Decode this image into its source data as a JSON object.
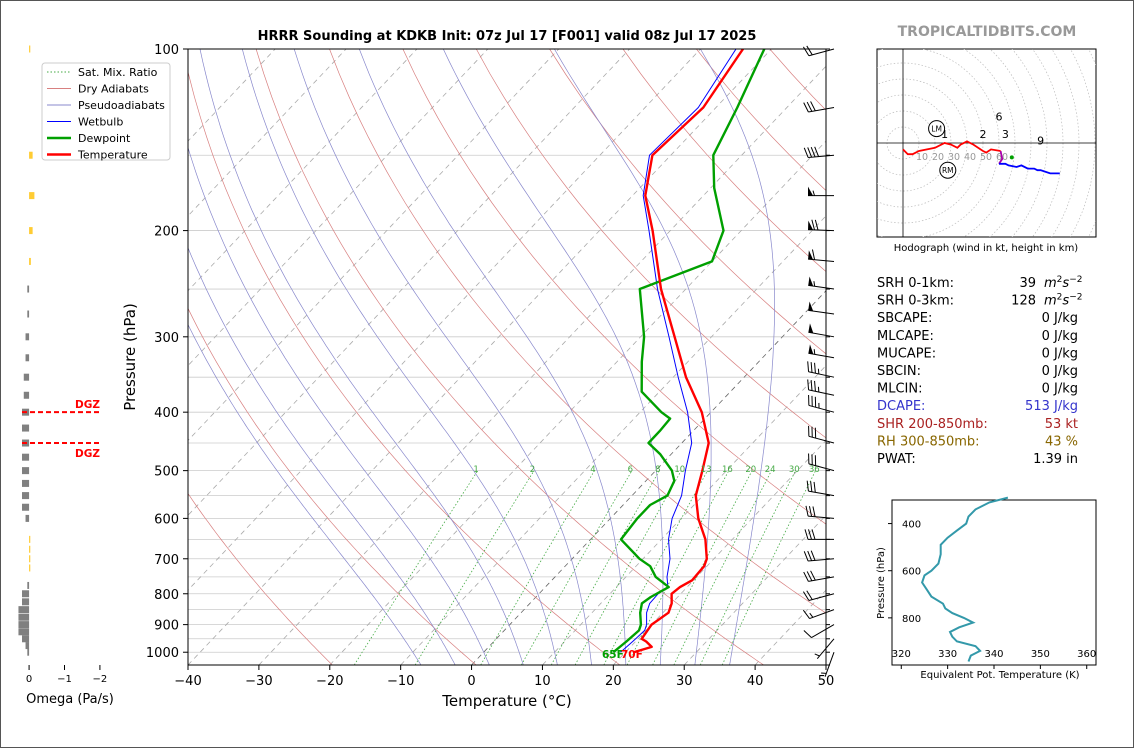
{
  "site_label": "TROPICALTIDBITS.COM",
  "colors": {
    "temperature": "#ff0000",
    "dewpoint": "#00a000",
    "wetbulb": "#0000ff",
    "dry_adiabat": "#d88080",
    "pseudoadiabat": "#8888cc",
    "mixing_ratio": "#44aa44",
    "hodograph_low": "#ff0000",
    "hodograph_mid": "#aa00aa",
    "hodograph_high": "#0000ff",
    "theta_e": "#3399aa",
    "dcape": "#3333cc",
    "shr": "#aa2222",
    "rh": "#886600",
    "dgz": "#ff0000",
    "omega_bar": "#808080",
    "omega_bar_positive": "#ffcc33"
  },
  "chart_data": [
    {
      "id": "skewt",
      "type": "line",
      "title": "HRRR Sounding at KDKB Init: 07z Jul 17 [F001] valid 08z Jul 17 2025",
      "xlabel": "Temperature (°C)",
      "ylabel": "Pressure (hPa)",
      "xlim": [
        -40,
        50
      ],
      "ylim": [
        1050,
        100
      ],
      "y_scale": "log",
      "x_ticks": [
        -40,
        -30,
        -20,
        -10,
        0,
        10,
        20,
        30,
        40,
        50
      ],
      "x_tick_labels": [
        "−40",
        "−30",
        "−20",
        "−10",
        "0",
        "10",
        "20",
        "30",
        "40",
        "50"
      ],
      "y_ticks": [
        100,
        200,
        300,
        400,
        500,
        600,
        700,
        800,
        900,
        1000
      ],
      "legend": {
        "position": "top-left",
        "entries": [
          "Sat. Mix. Ratio",
          "Dry Adiabats",
          "Pseudoadiabats",
          "Wetbulb",
          "Dewpoint",
          "Temperature"
        ]
      },
      "mixing_ratio_labels": [
        "1",
        "2",
        "4",
        "6",
        "8",
        "10",
        "13",
        "16",
        "20",
        "24",
        "30",
        "36"
      ],
      "surface_labels": {
        "dewpoint": "65F",
        "temperature": "70F"
      },
      "series": [
        {
          "name": "Temperature",
          "points": [
            [
              1000,
              21.2
            ],
            [
              980,
              23.0
            ],
            [
              960,
              21.5
            ],
            [
              950,
              20.5
            ],
            [
              920,
              20.2
            ],
            [
              900,
              20.0
            ],
            [
              860,
              20.8
            ],
            [
              830,
              20.0
            ],
            [
              800,
              18.7
            ],
            [
              780,
              19.0
            ],
            [
              760,
              19.8
            ],
            [
              720,
              19.6
            ],
            [
              700,
              19.0
            ],
            [
              650,
              16.2
            ],
            [
              600,
              12.4
            ],
            [
              550,
              9.0
            ],
            [
              500,
              6.6
            ],
            [
              450,
              3.8
            ],
            [
              400,
              -1.3
            ],
            [
              350,
              -8.2
            ],
            [
              300,
              -15.2
            ],
            [
              250,
              -23.5
            ],
            [
              200,
              -32.5
            ],
            [
              175,
              -38.2
            ],
            [
              150,
              -42.6
            ],
            [
              125,
              -41.8
            ],
            [
              100,
              -44.0
            ]
          ]
        },
        {
          "name": "Dewpoint",
          "points": [
            [
              1000,
              18.3
            ],
            [
              960,
              18.7
            ],
            [
              920,
              19.0
            ],
            [
              900,
              18.5
            ],
            [
              860,
              16.8
            ],
            [
              830,
              15.8
            ],
            [
              810,
              16.2
            ],
            [
              780,
              17.4
            ],
            [
              750,
              14.2
            ],
            [
              720,
              12.0
            ],
            [
              700,
              9.5
            ],
            [
              650,
              4.3
            ],
            [
              600,
              3.8
            ],
            [
              570,
              3.8
            ],
            [
              550,
              5.0
            ],
            [
              520,
              4.0
            ],
            [
              500,
              2.3
            ],
            [
              470,
              -1.5
            ],
            [
              450,
              -4.7
            ],
            [
              430,
              -4.7
            ],
            [
              410,
              -4.9
            ],
            [
              400,
              -7.0
            ],
            [
              370,
              -12.5
            ],
            [
              330,
              -16.5
            ],
            [
              300,
              -19.5
            ],
            [
              250,
              -26.5
            ],
            [
              225,
              -20.0
            ],
            [
              200,
              -22.5
            ],
            [
              170,
              -29.5
            ],
            [
              150,
              -34.0
            ],
            [
              125,
              -37.0
            ],
            [
              100,
              -41.0
            ]
          ]
        },
        {
          "name": "Wetbulb",
          "points": [
            [
              1000,
              19.3
            ],
            [
              960,
              19.6
            ],
            [
              920,
              19.8
            ],
            [
              900,
              19.3
            ],
            [
              860,
              17.7
            ],
            [
              830,
              16.9
            ],
            [
              800,
              16.8
            ],
            [
              780,
              17.3
            ],
            [
              750,
              15.8
            ],
            [
              700,
              13.8
            ],
            [
              650,
              11.0
            ],
            [
              600,
              8.7
            ],
            [
              550,
              7.0
            ],
            [
              500,
              4.2
            ],
            [
              450,
              1.4
            ],
            [
              400,
              -3.3
            ],
            [
              350,
              -9.3
            ],
            [
              300,
              -16.0
            ],
            [
              250,
              -24.0
            ],
            [
              200,
              -33.0
            ],
            [
              175,
              -38.5
            ],
            [
              150,
              -43.0
            ],
            [
              125,
              -42.5
            ],
            [
              100,
              -45.0
            ]
          ]
        }
      ],
      "dry_adiabats_thetas_K": [
        250,
        270,
        290,
        310,
        330,
        350,
        370,
        390,
        410,
        430,
        450,
        470,
        490,
        510,
        530
      ],
      "pseudoadiabats_thetaw_C": [
        -10,
        -5,
        0,
        5,
        10,
        15,
        20,
        25,
        30,
        35
      ],
      "mixing_ratios_gkg": [
        1,
        2,
        4,
        6,
        8,
        10,
        13,
        16,
        20,
        24,
        30,
        36
      ],
      "isotherms_C": [
        -110,
        -100,
        -90,
        -80,
        -70,
        -60,
        -50,
        -40,
        -30,
        -20,
        -10,
        0,
        10,
        20,
        30,
        40,
        50
      ]
    },
    {
      "id": "omega",
      "type": "bar",
      "xlabel": "Omega (Pa/s)",
      "x_ticks": [
        0,
        -1,
        -2
      ],
      "x_tick_labels": [
        "0",
        "−1",
        "−2"
      ],
      "xlim": [
        0.2,
        -2.2
      ],
      "dgz_label": "DGZ",
      "dgz_pressures": [
        400,
        450
      ],
      "bars": [
        [
          1000,
          0.05
        ],
        [
          975,
          0.1
        ],
        [
          950,
          0.2
        ],
        [
          925,
          0.3
        ],
        [
          900,
          0.3
        ],
        [
          875,
          0.3
        ],
        [
          850,
          0.3
        ],
        [
          825,
          0.2
        ],
        [
          800,
          0.2
        ],
        [
          775,
          0.05
        ],
        [
          725,
          -0.03
        ],
        [
          700,
          -0.03
        ],
        [
          675,
          -0.03
        ],
        [
          650,
          -0.02
        ],
        [
          600,
          0.1
        ],
        [
          575,
          0.2
        ],
        [
          550,
          0.2
        ],
        [
          525,
          0.2
        ],
        [
          500,
          0.2
        ],
        [
          475,
          0.2
        ],
        [
          450,
          0.2
        ],
        [
          425,
          0.2
        ],
        [
          400,
          0.2
        ],
        [
          375,
          0.15
        ],
        [
          350,
          0.15
        ],
        [
          325,
          0.1
        ],
        [
          300,
          0.1
        ],
        [
          275,
          0.05
        ],
        [
          250,
          0.05
        ],
        [
          225,
          -0.05
        ],
        [
          200,
          -0.1
        ],
        [
          175,
          -0.15
        ],
        [
          150,
          -0.1
        ],
        [
          100,
          -0.02
        ]
      ]
    },
    {
      "id": "hodograph",
      "type": "line",
      "caption": "Hodograph (wind in kt, height in km)",
      "ring_labels": [
        "10",
        "20",
        "30",
        "40",
        "50",
        "60"
      ],
      "height_labels": [
        "1",
        "2",
        "3",
        "6",
        "9"
      ],
      "storm_labels": [
        "LM",
        "RM"
      ],
      "storm_motion": {
        "LM": [
          21,
          9
        ],
        "RM": [
          28,
          -17
        ]
      },
      "points": [
        [
          0,
          -4
        ],
        [
          3,
          -7
        ],
        [
          6,
          -7
        ],
        [
          10,
          -5
        ],
        [
          20,
          -3
        ],
        [
          26,
          0
        ],
        [
          30,
          -1
        ],
        [
          34,
          -3
        ],
        [
          36,
          -1
        ],
        [
          40,
          1
        ],
        [
          44,
          -1
        ],
        [
          50,
          -5
        ],
        [
          52,
          -6
        ],
        [
          55,
          -4
        ],
        [
          61,
          -5
        ],
        [
          62,
          -10
        ],
        [
          60,
          -13
        ],
        [
          64,
          -13
        ],
        [
          66,
          -14
        ],
        [
          71,
          -15
        ],
        [
          74,
          -14
        ],
        [
          78,
          -16
        ],
        [
          82,
          -16
        ],
        [
          84,
          -17
        ],
        [
          86,
          -17
        ],
        [
          92,
          -19
        ],
        [
          98,
          -19
        ]
      ]
    },
    {
      "id": "theta_e",
      "type": "line",
      "xlabel": "Equivalent Pot. Temperature (K)",
      "ylabel": "Pressure (hPa)",
      "xlim": [
        318,
        362
      ],
      "ylim": [
        1000,
        300
      ],
      "x_ticks": [
        320,
        330,
        340,
        350,
        360
      ],
      "y_ticks": [
        400,
        600,
        800
      ],
      "points": [
        [
          985,
          334.5
        ],
        [
          960,
          335.0
        ],
        [
          940,
          337.0
        ],
        [
          920,
          336.0
        ],
        [
          900,
          332.0
        ],
        [
          880,
          331.0
        ],
        [
          860,
          330.5
        ],
        [
          840,
          332.5
        ],
        [
          820,
          335.5
        ],
        [
          800,
          333.5
        ],
        [
          780,
          331.0
        ],
        [
          760,
          329.5
        ],
        [
          740,
          329.0
        ],
        [
          710,
          326.5
        ],
        [
          680,
          325.5
        ],
        [
          650,
          324.5
        ],
        [
          620,
          325.0
        ],
        [
          600,
          326.5
        ],
        [
          570,
          328.0
        ],
        [
          530,
          328.5
        ],
        [
          490,
          328.5
        ],
        [
          460,
          330.0
        ],
        [
          430,
          332.0
        ],
        [
          400,
          334.0
        ],
        [
          370,
          334.5
        ],
        [
          340,
          336.0
        ],
        [
          310,
          339.0
        ],
        [
          290,
          343.0
        ]
      ]
    }
  ],
  "stats": [
    {
      "key": "srh01",
      "label": "SRH 0-1km:",
      "value": "39",
      "unit_pre": "m",
      "unit_exp1": "2",
      "unit_mid": "s",
      "unit_exp2": "−2"
    },
    {
      "key": "srh03",
      "label": "SRH 0-3km:",
      "value": "128",
      "unit_pre": "m",
      "unit_exp1": "2",
      "unit_mid": "s",
      "unit_exp2": "−2"
    },
    {
      "key": "sbcape",
      "label": "SBCAPE:",
      "value": "0 J/kg"
    },
    {
      "key": "mlcape",
      "label": "MLCAPE:",
      "value": "0 J/kg"
    },
    {
      "key": "mucape",
      "label": "MUCAPE:",
      "value": "0 J/kg"
    },
    {
      "key": "sbcin",
      "label": "SBCIN:",
      "value": "0 J/kg"
    },
    {
      "key": "mlcin",
      "label": "MLCIN:",
      "value": "0 J/kg"
    },
    {
      "key": "dcape",
      "label": "DCAPE:",
      "value": "513 J/kg"
    },
    {
      "key": "shr",
      "label": "SHR 200-850mb:",
      "value": "53 kt"
    },
    {
      "key": "rh",
      "label": "RH 300-850mb:",
      "value": "43 %"
    },
    {
      "key": "pwat",
      "label": "PWAT:",
      "value": "1.39 in"
    }
  ],
  "wind_barbs": [
    {
      "p": 100,
      "dir": 255,
      "kt": 20
    },
    {
      "p": 125,
      "dir": 260,
      "kt": 30
    },
    {
      "p": 150,
      "dir": 265,
      "kt": 40
    },
    {
      "p": 175,
      "dir": 270,
      "kt": 55
    },
    {
      "p": 200,
      "dir": 272,
      "kt": 70
    },
    {
      "p": 225,
      "dir": 275,
      "kt": 60
    },
    {
      "p": 250,
      "dir": 278,
      "kt": 55
    },
    {
      "p": 275,
      "dir": 278,
      "kt": 50
    },
    {
      "p": 300,
      "dir": 280,
      "kt": 50
    },
    {
      "p": 325,
      "dir": 280,
      "kt": 55
    },
    {
      "p": 350,
      "dir": 282,
      "kt": 35
    },
    {
      "p": 375,
      "dir": 282,
      "kt": 35
    },
    {
      "p": 400,
      "dir": 285,
      "kt": 35
    },
    {
      "p": 450,
      "dir": 285,
      "kt": 30
    },
    {
      "p": 500,
      "dir": 285,
      "kt": 30
    },
    {
      "p": 550,
      "dir": 280,
      "kt": 30
    },
    {
      "p": 600,
      "dir": 275,
      "kt": 30
    },
    {
      "p": 650,
      "dir": 270,
      "kt": 30
    },
    {
      "p": 700,
      "dir": 265,
      "kt": 30
    },
    {
      "p": 750,
      "dir": 260,
      "kt": 30
    },
    {
      "p": 800,
      "dir": 255,
      "kt": 20
    },
    {
      "p": 850,
      "dir": 250,
      "kt": 15
    },
    {
      "p": 900,
      "dir": 240,
      "kt": 10
    },
    {
      "p": 950,
      "dir": 220,
      "kt": 5
    },
    {
      "p": 1000,
      "dir": 200,
      "kt": 5
    }
  ]
}
